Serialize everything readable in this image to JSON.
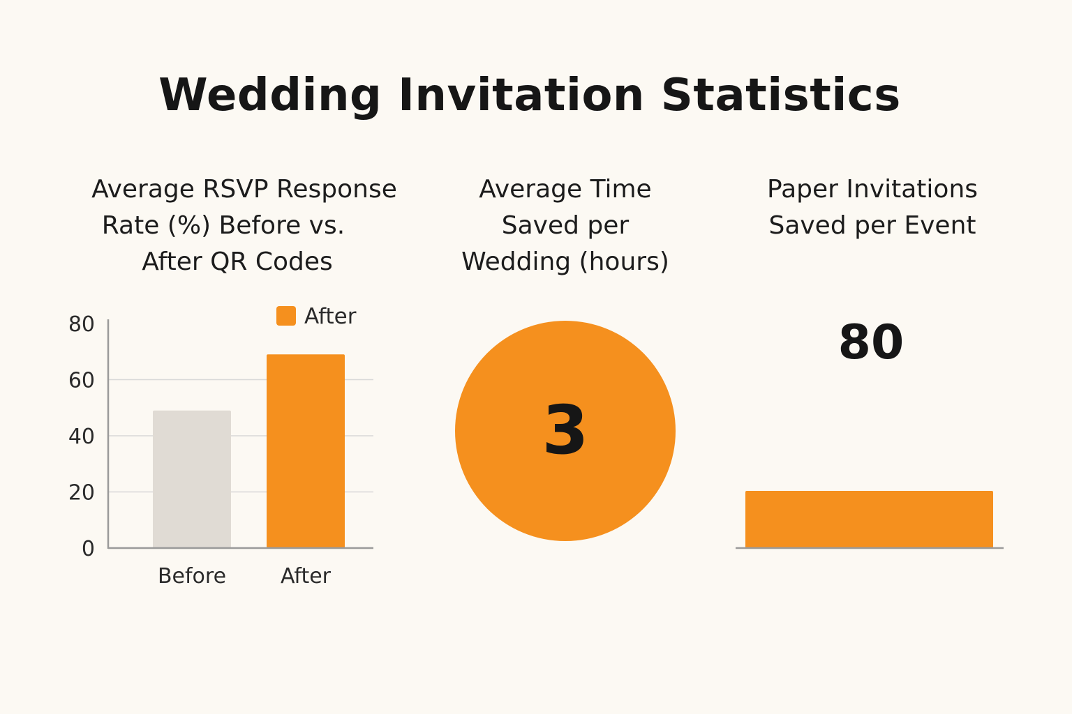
{
  "title": "Wedding Invitation Statistics",
  "colors": {
    "background": "#fcf9f3",
    "accent": "#f5901e",
    "neutral": "#e0dbd4",
    "axis": "#9a9a9a",
    "grid": "#d8d8d8"
  },
  "chart_data": [
    {
      "type": "bar",
      "title_lines": [
        "Average RSVP Response",
        "Rate (%) Before vs.",
        "After QR Codes"
      ],
      "categories": [
        "Before",
        "After"
      ],
      "values": [
        49,
        69
      ],
      "bar_colors": [
        "#e0dbd4",
        "#f5901e"
      ],
      "legend": [
        {
          "label": "After",
          "color": "#f5901e"
        }
      ],
      "yticks": [
        "0",
        "20",
        "40",
        "60",
        "80"
      ],
      "ylim": [
        0,
        80
      ],
      "xlabel": "",
      "ylabel": ""
    },
    {
      "type": "pie",
      "title_lines": [
        "Average Time",
        "Saved per",
        "Wedding (hours)"
      ],
      "value": 3,
      "label": "3",
      "color": "#f5901e"
    },
    {
      "type": "bar",
      "title_lines": [
        "Paper Invitations",
        "Saved per Event"
      ],
      "value": 80,
      "label": "80",
      "color": "#f5901e"
    }
  ]
}
